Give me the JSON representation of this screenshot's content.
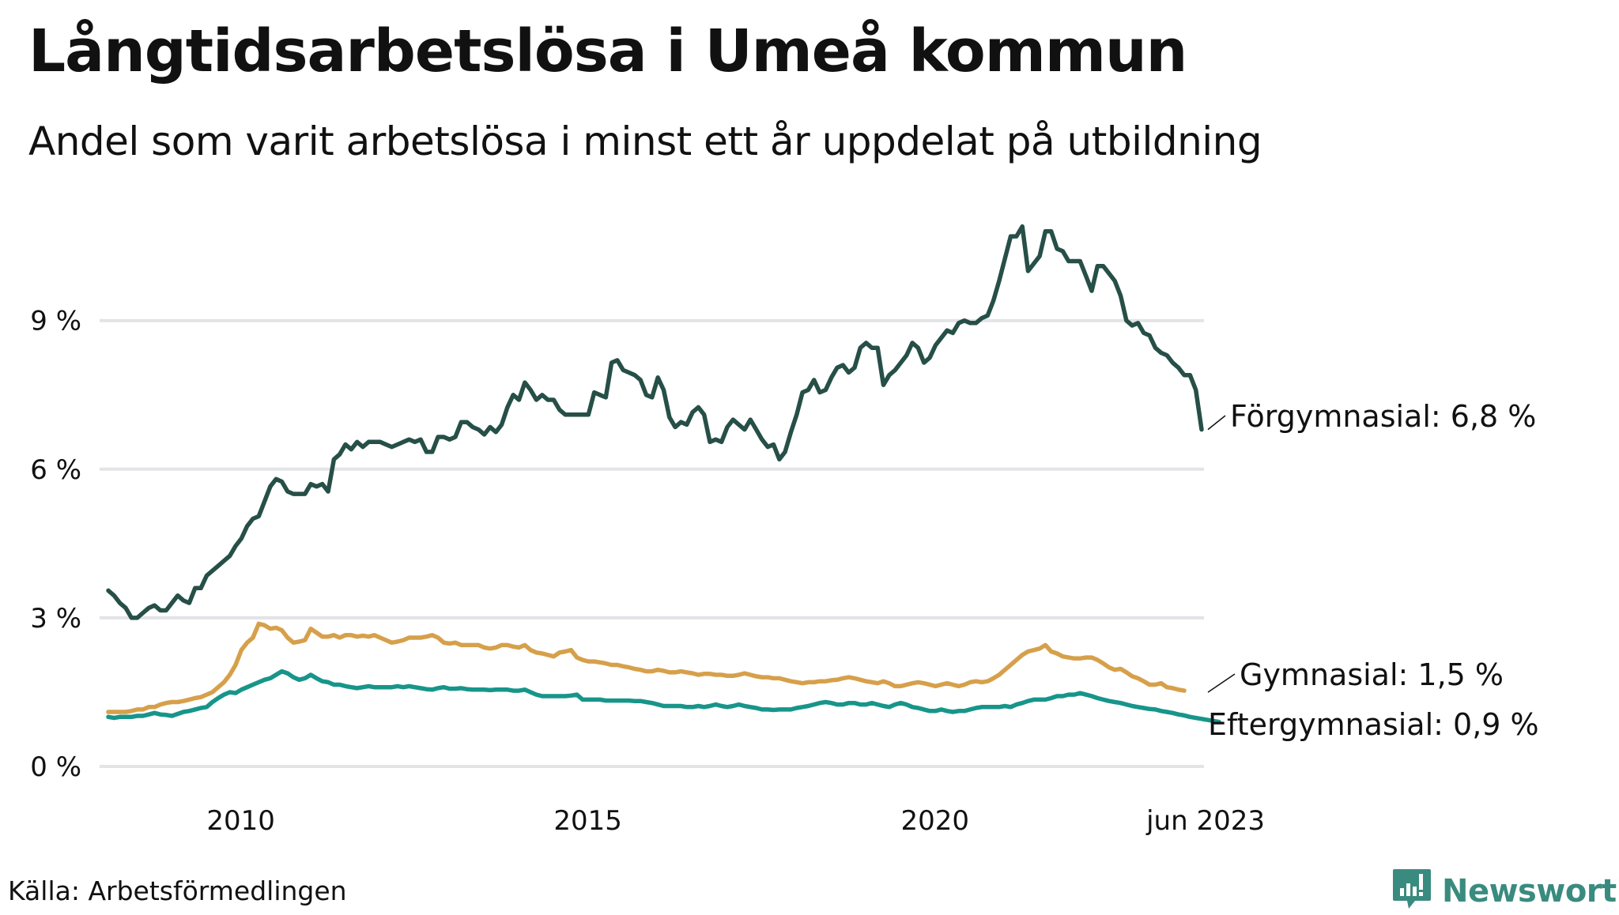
{
  "header": {
    "title": "Långtidsarbetslösa i Umeå kommun",
    "subtitle": "Andel som varit arbetslösa i minst ett år uppdelat på utbildning"
  },
  "footer": {
    "source": "Källa: Arbetsförmedlingen",
    "brand": "Newsworthy",
    "brand_icon": "bar-chart-speech-bubble-icon"
  },
  "chart_data": {
    "type": "line",
    "title": "Långtidsarbetslösa i Umeå kommun",
    "subtitle": "Andel som varit arbetslösa i minst ett år uppdelat på utbildning",
    "xlabel": "",
    "ylabel": "",
    "x_start": "2008-01",
    "x_end": "2023-06",
    "x_ticks": [
      {
        "label": "2010",
        "month_index": 24
      },
      {
        "label": "2015",
        "month_index": 84
      },
      {
        "label": "2020",
        "month_index": 144
      },
      {
        "label": "jun 2023",
        "month_index": 185
      }
    ],
    "y_ticks": [
      {
        "label": "0 %",
        "value": 0
      },
      {
        "label": "3 %",
        "value": 3
      },
      {
        "label": "6 %",
        "value": 6
      },
      {
        "label": "9 %",
        "value": 9
      }
    ],
    "ylim": [
      0,
      11
    ],
    "grid": true,
    "legend": "direct-labels-right",
    "series": [
      {
        "name": "Förgymnasial",
        "end_label": "Förgymnasial: 6,8 %",
        "color": "#264f47",
        "values": [
          3.55,
          3.45,
          3.3,
          3.2,
          3.0,
          3.0,
          3.1,
          3.2,
          3.25,
          3.15,
          3.15,
          3.3,
          3.45,
          3.35,
          3.3,
          3.6,
          3.6,
          3.85,
          3.95,
          4.05,
          4.15,
          4.25,
          4.45,
          4.6,
          4.85,
          5.0,
          5.05,
          5.35,
          5.65,
          5.8,
          5.75,
          5.55,
          5.5,
          5.5,
          5.5,
          5.7,
          5.65,
          5.7,
          5.55,
          6.2,
          6.3,
          6.5,
          6.4,
          6.55,
          6.45,
          6.55,
          6.55,
          6.55,
          6.5,
          6.45,
          6.5,
          6.55,
          6.6,
          6.55,
          6.6,
          6.35,
          6.35,
          6.65,
          6.65,
          6.6,
          6.65,
          6.95,
          6.95,
          6.85,
          6.8,
          6.7,
          6.85,
          6.75,
          6.9,
          7.25,
          7.5,
          7.4,
          7.75,
          7.6,
          7.4,
          7.5,
          7.4,
          7.4,
          7.2,
          7.1,
          7.1,
          7.1,
          7.1,
          7.1,
          7.55,
          7.5,
          7.45,
          8.15,
          8.2,
          8.0,
          7.95,
          7.9,
          7.8,
          7.5,
          7.45,
          7.85,
          7.6,
          7.05,
          6.85,
          6.95,
          6.9,
          7.15,
          7.25,
          7.1,
          6.55,
          6.6,
          6.55,
          6.85,
          7.0,
          6.9,
          6.8,
          7.0,
          6.8,
          6.6,
          6.45,
          6.5,
          6.2,
          6.35,
          6.75,
          7.1,
          7.55,
          7.6,
          7.8,
          7.55,
          7.6,
          7.85,
          8.05,
          8.1,
          7.95,
          8.05,
          8.45,
          8.55,
          8.45,
          8.45,
          7.7,
          7.9,
          8.0,
          8.15,
          8.3,
          8.55,
          8.45,
          8.15,
          8.25,
          8.5,
          8.65,
          8.8,
          8.75,
          8.95,
          9.0,
          8.95,
          8.95,
          9.05,
          9.1,
          9.4,
          9.8,
          10.25,
          10.7,
          10.7,
          10.9,
          10.0,
          10.15,
          10.3,
          10.8,
          10.8,
          10.45,
          10.4,
          10.2,
          10.2,
          10.2,
          9.9,
          9.6,
          10.1,
          10.1,
          9.95,
          9.8,
          9.5,
          9.0,
          8.9,
          8.95,
          8.75,
          8.7,
          8.45,
          8.35,
          8.3,
          8.15,
          8.05,
          7.9,
          7.9,
          7.6,
          6.8
        ]
      },
      {
        "name": "Gymnasial",
        "end_label": "Gymnasial: 1,5 %",
        "color": "#d6a04b",
        "values": [
          1.1,
          1.1,
          1.1,
          1.1,
          1.12,
          1.15,
          1.15,
          1.2,
          1.2,
          1.25,
          1.28,
          1.3,
          1.3,
          1.32,
          1.35,
          1.38,
          1.4,
          1.45,
          1.5,
          1.6,
          1.7,
          1.85,
          2.05,
          2.35,
          2.5,
          2.6,
          2.88,
          2.85,
          2.78,
          2.8,
          2.75,
          2.6,
          2.5,
          2.52,
          2.55,
          2.78,
          2.7,
          2.62,
          2.62,
          2.65,
          2.6,
          2.65,
          2.65,
          2.62,
          2.64,
          2.62,
          2.65,
          2.6,
          2.55,
          2.5,
          2.52,
          2.55,
          2.6,
          2.6,
          2.6,
          2.62,
          2.65,
          2.6,
          2.5,
          2.48,
          2.5,
          2.45,
          2.45,
          2.45,
          2.45,
          2.4,
          2.38,
          2.4,
          2.45,
          2.45,
          2.42,
          2.4,
          2.45,
          2.35,
          2.3,
          2.28,
          2.25,
          2.22,
          2.3,
          2.32,
          2.35,
          2.2,
          2.15,
          2.12,
          2.12,
          2.1,
          2.08,
          2.05,
          2.05,
          2.02,
          2.0,
          1.97,
          1.95,
          1.92,
          1.92,
          1.95,
          1.93,
          1.9,
          1.9,
          1.92,
          1.9,
          1.88,
          1.85,
          1.87,
          1.87,
          1.85,
          1.85,
          1.83,
          1.83,
          1.85,
          1.88,
          1.85,
          1.82,
          1.8,
          1.8,
          1.78,
          1.78,
          1.75,
          1.72,
          1.7,
          1.68,
          1.7,
          1.7,
          1.72,
          1.72,
          1.74,
          1.75,
          1.78,
          1.8,
          1.78,
          1.75,
          1.72,
          1.7,
          1.68,
          1.72,
          1.68,
          1.62,
          1.62,
          1.65,
          1.68,
          1.7,
          1.68,
          1.65,
          1.62,
          1.65,
          1.68,
          1.65,
          1.62,
          1.65,
          1.7,
          1.72,
          1.7,
          1.72,
          1.78,
          1.85,
          1.95,
          2.05,
          2.15,
          2.25,
          2.32,
          2.35,
          2.38,
          2.45,
          2.32,
          2.28,
          2.22,
          2.2,
          2.18,
          2.18,
          2.2,
          2.2,
          2.15,
          2.08,
          2.0,
          1.95,
          1.97,
          1.9,
          1.82,
          1.78,
          1.72,
          1.65,
          1.65,
          1.68,
          1.6,
          1.58,
          1.55,
          1.53
        ]
      },
      {
        "name": "Eftergymnasial",
        "end_label": "Eftergymnasial: 0,9 %",
        "color": "#17958a",
        "values": [
          1.0,
          0.98,
          1.0,
          1.0,
          1.0,
          1.02,
          1.02,
          1.05,
          1.08,
          1.05,
          1.04,
          1.02,
          1.06,
          1.1,
          1.12,
          1.15,
          1.18,
          1.2,
          1.3,
          1.38,
          1.45,
          1.5,
          1.48,
          1.55,
          1.6,
          1.65,
          1.7,
          1.75,
          1.78,
          1.85,
          1.92,
          1.88,
          1.8,
          1.75,
          1.78,
          1.85,
          1.78,
          1.72,
          1.7,
          1.65,
          1.65,
          1.62,
          1.6,
          1.58,
          1.6,
          1.62,
          1.6,
          1.6,
          1.6,
          1.6,
          1.62,
          1.6,
          1.62,
          1.6,
          1.58,
          1.56,
          1.55,
          1.58,
          1.6,
          1.57,
          1.57,
          1.58,
          1.56,
          1.55,
          1.55,
          1.55,
          1.54,
          1.55,
          1.55,
          1.55,
          1.53,
          1.53,
          1.55,
          1.5,
          1.45,
          1.42,
          1.42,
          1.42,
          1.42,
          1.42,
          1.43,
          1.45,
          1.35,
          1.35,
          1.35,
          1.35,
          1.33,
          1.33,
          1.33,
          1.33,
          1.33,
          1.32,
          1.32,
          1.3,
          1.28,
          1.25,
          1.22,
          1.22,
          1.22,
          1.22,
          1.2,
          1.2,
          1.22,
          1.2,
          1.22,
          1.25,
          1.22,
          1.2,
          1.22,
          1.25,
          1.22,
          1.2,
          1.18,
          1.15,
          1.15,
          1.14,
          1.15,
          1.15,
          1.15,
          1.18,
          1.2,
          1.22,
          1.25,
          1.28,
          1.3,
          1.28,
          1.25,
          1.25,
          1.28,
          1.28,
          1.25,
          1.25,
          1.28,
          1.25,
          1.22,
          1.2,
          1.25,
          1.28,
          1.25,
          1.2,
          1.18,
          1.15,
          1.12,
          1.12,
          1.15,
          1.12,
          1.1,
          1.12,
          1.12,
          1.15,
          1.18,
          1.2,
          1.2,
          1.2,
          1.2,
          1.22,
          1.2,
          1.25,
          1.28,
          1.32,
          1.35,
          1.35,
          1.35,
          1.38,
          1.42,
          1.42,
          1.45,
          1.45,
          1.48,
          1.45,
          1.42,
          1.38,
          1.35,
          1.32,
          1.3,
          1.28,
          1.25,
          1.22,
          1.2,
          1.18,
          1.16,
          1.15,
          1.12,
          1.1,
          1.08,
          1.05,
          1.03,
          1.0,
          0.98,
          0.96,
          0.94,
          0.92,
          0.9
        ]
      }
    ]
  }
}
